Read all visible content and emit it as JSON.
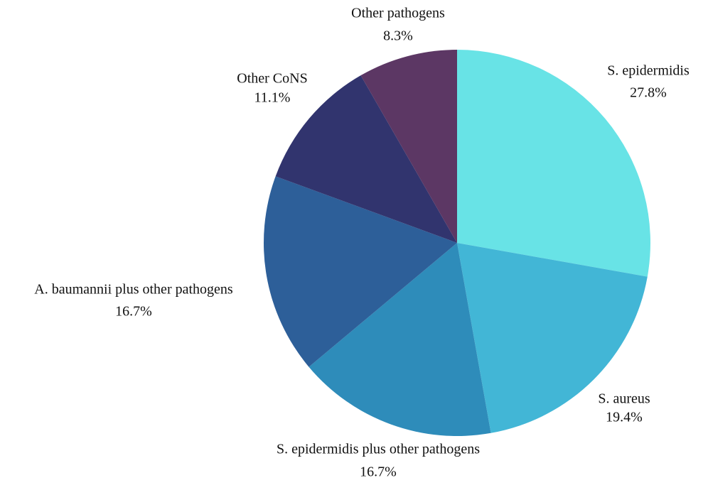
{
  "chart_data": {
    "type": "pie",
    "categories": [
      "S. epidermidis",
      "S. aureus",
      "S. epidermidis plus other pathogens",
      "A. baumannii plus other pathogens",
      "Other CoNS",
      "Other pathogens"
    ],
    "values": [
      27.8,
      19.4,
      16.7,
      16.7,
      11.1,
      8.3
    ],
    "value_labels": [
      "27.8%",
      "19.4%",
      "16.7%",
      "16.7%",
      "11.1%",
      "8.3%"
    ],
    "colors": [
      "#68e3e6",
      "#42b6d6",
      "#2e8cba",
      "#2d5f99",
      "#31346e",
      "#5c3764"
    ]
  }
}
